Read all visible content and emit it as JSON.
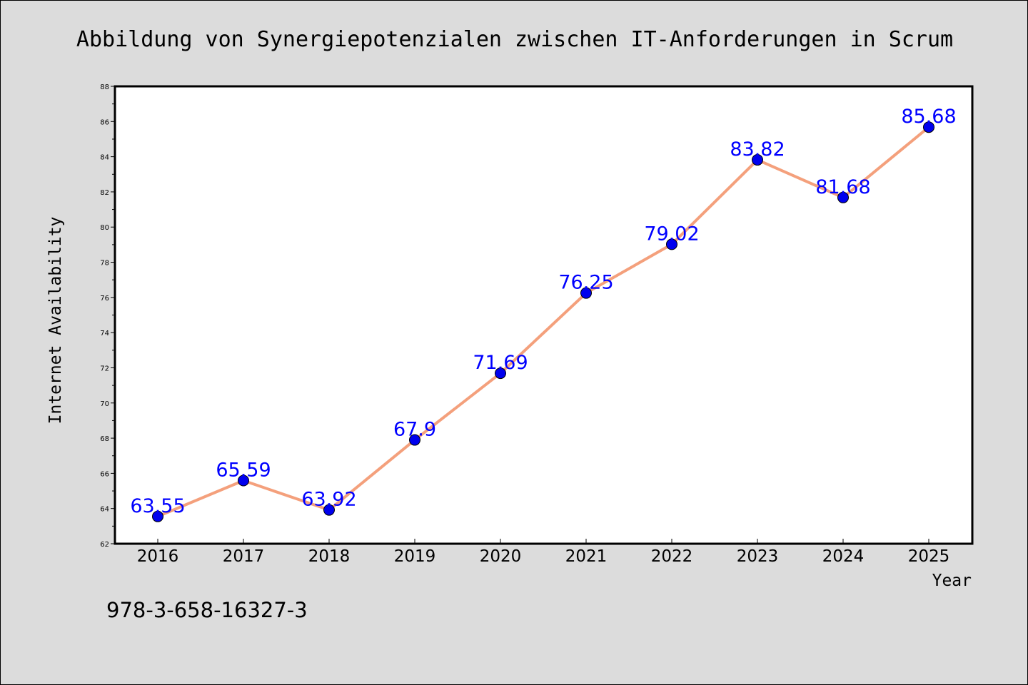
{
  "title": "Abbildung von Synergiepotenzialen zwischen IT-Anforderungen in Scrum",
  "footer_text": "978-3-658-16327-3",
  "colors": {
    "background": "#dcdcdc",
    "plot_background": "#ffffff",
    "line": "#f4a07c",
    "marker": "#0000ee",
    "data_label": "#0000ff"
  },
  "chart_data": {
    "type": "line",
    "xlabel": "Year",
    "ylabel": "Internet Availability",
    "x": [
      "2016",
      "2017",
      "2018",
      "2019",
      "2020",
      "2021",
      "2022",
      "2023",
      "2024",
      "2025"
    ],
    "series": [
      {
        "values": [
          63.55,
          65.59,
          63.92,
          67.9,
          71.69,
          76.25,
          79.02,
          83.82,
          81.68,
          85.68
        ]
      }
    ],
    "data_labels": [
      "63.55",
      "65.59",
      "63.92",
      "67.9",
      "71.69",
      "76.25",
      "79.02",
      "83.82",
      "81.68",
      "85.68"
    ],
    "ylim": [
      62,
      88
    ],
    "yticks": [
      62,
      64,
      66,
      68,
      70,
      72,
      74,
      76,
      78,
      80,
      82,
      84,
      86,
      88
    ],
    "grid": false,
    "legend": "none"
  }
}
